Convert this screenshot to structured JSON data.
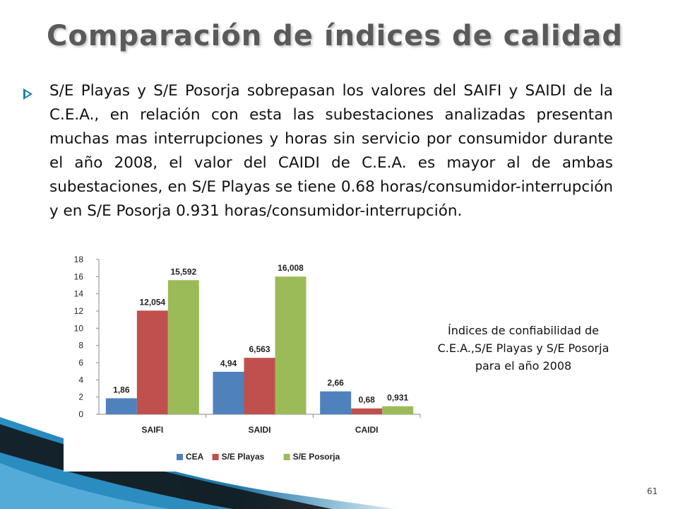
{
  "slide": {
    "title": "Comparación de índices de calidad",
    "body": "S/E Playas y S/E Posorja sobrepasan los valores del SAIFI y SAIDI de la C.E.A., en relación con esta las subestaciones analizadas presentan muchas mas interrupciones y horas sin servicio por consumidor durante el año 2008, el valor del CAIDI de C.E.A. es mayor al de ambas subestaciones, en S/E Playas se tiene 0.68 horas/consumidor-interrupción y en S/E Posorja 0.931 horas/consumidor-interrupción.",
    "caption": "Índices de confiabilidad de C.E.A.,S/E Playas y S/E Posorja para el año 2008",
    "page_number": "61",
    "accent_color": "#1d7fb3",
    "bullet_icon": "arrow-bullet-icon"
  },
  "chart_data": {
    "type": "bar",
    "categories": [
      "SAIFI",
      "SAIDI",
      "CAIDI"
    ],
    "series": [
      {
        "name": "CEA",
        "color": "#4f81bd",
        "values": [
          1.86,
          4.94,
          2.66
        ],
        "labels": [
          "1,86",
          "4,94",
          "2,66"
        ]
      },
      {
        "name": "S/E Playas",
        "color": "#c0504d",
        "values": [
          12.054,
          6.563,
          0.68
        ],
        "labels": [
          "12,054",
          "6,563",
          "0,68"
        ]
      },
      {
        "name": "S/E Posorja",
        "color": "#9bbb59",
        "values": [
          15.592,
          16.008,
          0.931
        ],
        "labels": [
          "15,592",
          "16,008",
          "0,931"
        ]
      }
    ],
    "ylim": [
      0,
      18
    ],
    "yticks": [
      0,
      2,
      4,
      6,
      8,
      10,
      12,
      14,
      16,
      18
    ],
    "grid": false,
    "legend_position": "bottom",
    "title": "",
    "xlabel": "",
    "ylabel": ""
  }
}
